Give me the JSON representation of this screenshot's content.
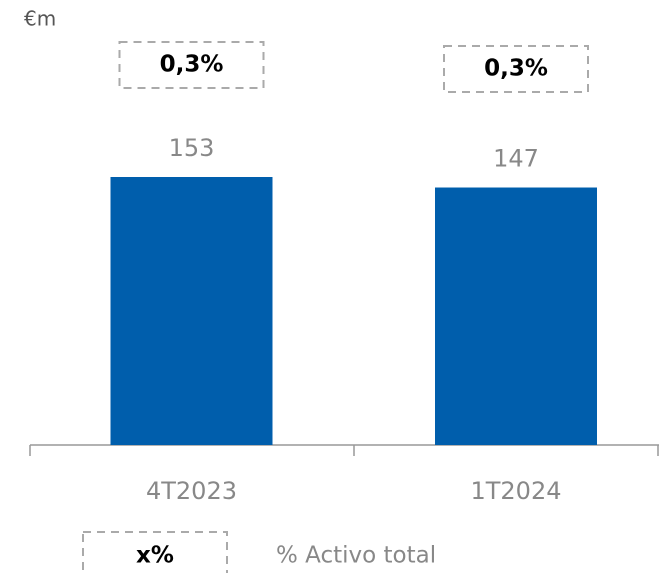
{
  "chart_data": {
    "type": "bar",
    "unit": "€m",
    "categories": [
      "4T2023",
      "1T2024"
    ],
    "values": [
      153,
      147
    ],
    "color": "#005eac",
    "ratio": {
      "name": "% Activo total",
      "symbol": "x%",
      "values": [
        0.3,
        0.3
      ],
      "value_labels": [
        "0,3%",
        "0,3%"
      ]
    }
  }
}
